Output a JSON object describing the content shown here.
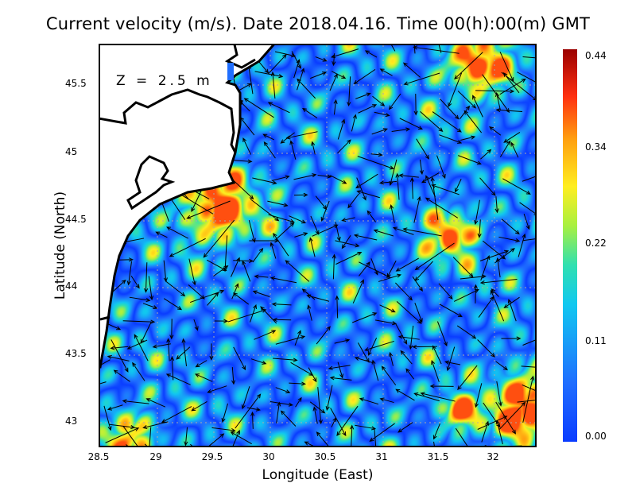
{
  "title": "Current velocity (m/s). Date 2018.04.16. Time 00(h):00(m) GMT",
  "depth_label": "Z = 2.5 m",
  "x_axis": {
    "label": "Longitude (East)",
    "ticks": [
      "28.5",
      "29",
      "29.5",
      "30",
      "30.5",
      "31",
      "31.5",
      "32"
    ],
    "range": [
      28.5,
      32.39
    ]
  },
  "y_axis": {
    "label": "Latitude (North)",
    "ticks": [
      "45.5",
      "45",
      "44.5",
      "44",
      "43.5",
      "43"
    ],
    "range": [
      42.8,
      45.79
    ]
  },
  "colorbar": {
    "ticks": [
      "0.44",
      "0.34",
      "0.22",
      "0.11",
      "0.00"
    ],
    "range": [
      0,
      0.44
    ]
  },
  "colors": {
    "low": "#0a3cff",
    "mid": "#11c8f0",
    "high": "#ffee20",
    "max": "#9a0000"
  }
}
